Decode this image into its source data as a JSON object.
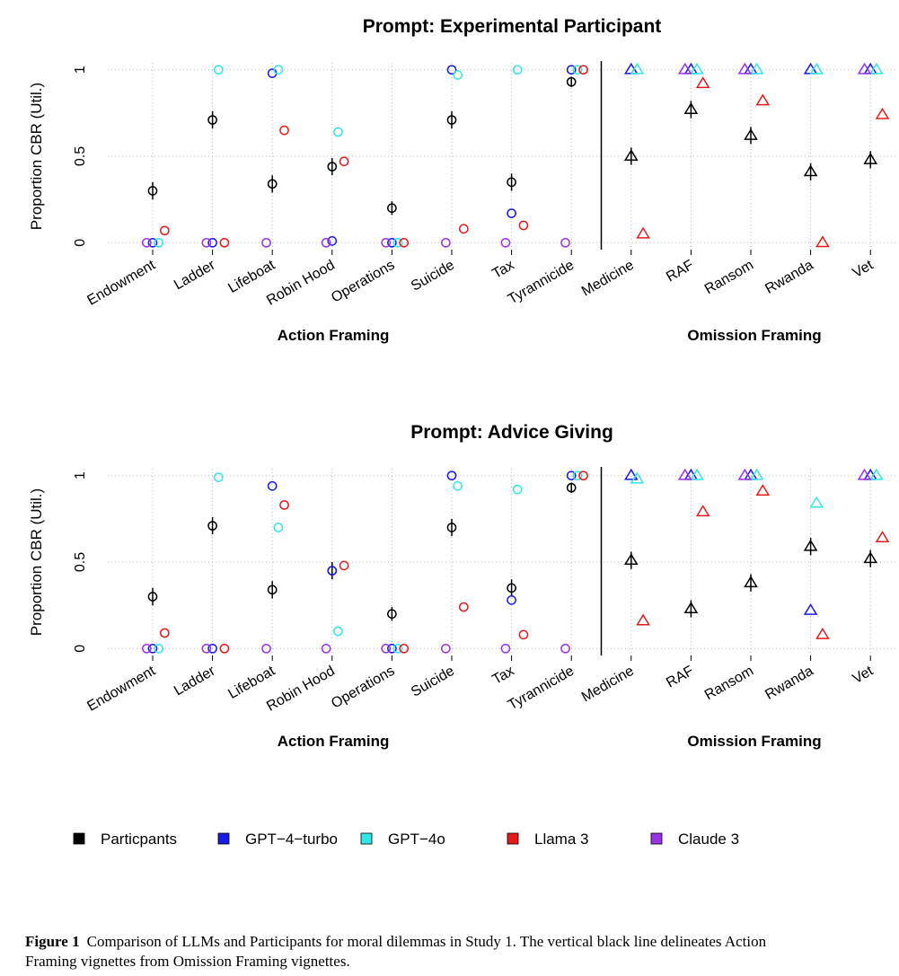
{
  "chart_data": [
    {
      "type": "scatter",
      "title": "Prompt: Experimental Participant",
      "y_label": "Proportion CBR (Util.)",
      "groups": [
        {
          "label": "Action Framing",
          "marker": "circle",
          "categories": [
            "Endowment",
            "Ladder",
            "Lifeboat",
            "Robin Hood",
            "Operations",
            "Suicide",
            "Tax",
            "Tyrannicide"
          ]
        },
        {
          "label": "Omission Framing",
          "marker": "triangle",
          "categories": [
            "Medicine",
            "RAF",
            "Ransom",
            "Rwanda",
            "Vet"
          ]
        }
      ],
      "ylim": [
        -0.04,
        1.04
      ],
      "yticks": [
        0.0,
        0.5,
        1.0
      ],
      "grid": true,
      "series": [
        {
          "name": "Particpants",
          "color": "#000000",
          "values": [
            0.3,
            0.71,
            0.34,
            0.44,
            0.2,
            0.71,
            0.35,
            0.93,
            0.5,
            0.77,
            0.62,
            0.41,
            0.48
          ],
          "errors": [
            0.05,
            0.05,
            0.05,
            0.05,
            0.04,
            0.05,
            0.05,
            0.03,
            0.05,
            0.05,
            0.05,
            0.05,
            0.05
          ]
        },
        {
          "name": "GPT−4−turbo",
          "color": "#1a1ae6",
          "values": [
            0,
            0,
            0.98,
            0.01,
            0,
            1.0,
            0.17,
            1.0,
            1.0,
            1.0,
            1.0,
            1.0,
            1.0
          ]
        },
        {
          "name": "GPT−4o",
          "color": "#33e6e6",
          "values": [
            0,
            1.0,
            1.0,
            0.64,
            0,
            0.97,
            1.0,
            1.0,
            1.0,
            1.0,
            1.0,
            1.0,
            1.0
          ]
        },
        {
          "name": "Llama 3",
          "color": "#e61a1a",
          "values": [
            0.07,
            0,
            0.65,
            0.47,
            0,
            0.08,
            0.1,
            1.0,
            0.05,
            0.92,
            0.82,
            0.0,
            0.74
          ]
        },
        {
          "name": "Claude 3",
          "color": "#9933e6",
          "values": [
            0,
            0,
            0,
            0,
            0,
            0,
            0,
            0,
            null,
            1.0,
            1.0,
            null,
            1.0
          ]
        }
      ]
    },
    {
      "type": "scatter",
      "title": "Prompt: Advice Giving",
      "y_label": "Proportion CBR (Util.)",
      "groups": [
        {
          "label": "Action Framing",
          "marker": "circle",
          "categories": [
            "Endowment",
            "Ladder",
            "Lifeboat",
            "Robin Hood",
            "Operations",
            "Suicide",
            "Tax",
            "Tyrannicide"
          ]
        },
        {
          "label": "Omission Framing",
          "marker": "triangle",
          "categories": [
            "Medicine",
            "RAF",
            "Ransom",
            "Rwanda",
            "Vet"
          ]
        }
      ],
      "ylim": [
        -0.04,
        1.04
      ],
      "yticks": [
        0.0,
        0.5,
        1.0
      ],
      "grid": true,
      "series": [
        {
          "name": "Particpants",
          "color": "#000000",
          "values": [
            0.3,
            0.71,
            0.34,
            0.45,
            0.2,
            0.7,
            0.35,
            0.93,
            0.51,
            0.23,
            0.38,
            0.59,
            0.52
          ],
          "errors": [
            0.05,
            0.05,
            0.05,
            0.05,
            0.04,
            0.05,
            0.05,
            0.03,
            0.05,
            0.05,
            0.05,
            0.05,
            0.05
          ]
        },
        {
          "name": "GPT−4−turbo",
          "color": "#1a1ae6",
          "values": [
            0,
            0,
            0.94,
            0.45,
            0,
            1.0,
            0.28,
            1.0,
            1.0,
            1.0,
            1.0,
            0.22,
            1.0
          ]
        },
        {
          "name": "GPT−4o",
          "color": "#33e6e6",
          "values": [
            0,
            0.99,
            0.7,
            0.1,
            0,
            0.94,
            0.92,
            1.0,
            0.98,
            1.0,
            1.0,
            0.84,
            1.0
          ]
        },
        {
          "name": "Llama 3",
          "color": "#e61a1a",
          "values": [
            0.09,
            0,
            0.83,
            0.48,
            0,
            0.24,
            0.08,
            1.0,
            0.16,
            0.79,
            0.91,
            0.08,
            0.64
          ]
        },
        {
          "name": "Claude 3",
          "color": "#9933e6",
          "values": [
            0,
            0,
            0,
            0,
            0,
            0,
            0,
            0,
            null,
            1.0,
            1.0,
            null,
            1.0
          ]
        }
      ]
    }
  ],
  "caption": {
    "label": "Figure 1",
    "text": "Comparison of LLMs and Participants for moral dilemmas in Study 1. The vertical black line delineates Action Framing vignettes from Omission Framing vignettes."
  }
}
